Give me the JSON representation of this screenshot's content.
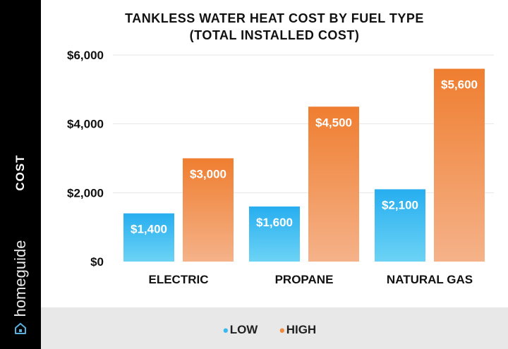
{
  "chart_data": {
    "type": "bar",
    "title": "TANKLESS WATER HEAT COST BY FUEL TYPE",
    "subtitle": "(TOTAL INSTALLED COST)",
    "ylabel": "COST",
    "xlabel": "",
    "categories": [
      "ELECTRIC",
      "PROPANE",
      "NATURAL GAS"
    ],
    "series": [
      {
        "name": "LOW",
        "values": [
          1400,
          1600,
          2100
        ],
        "labels": [
          "$1,400",
          "$1,600",
          "$2,100"
        ],
        "color": "#3cb8f0"
      },
      {
        "name": "HIGH",
        "values": [
          3000,
          4500,
          5600
        ],
        "labels": [
          "$3,000",
          "$4,500",
          "$5,600"
        ],
        "color": "#ef8a3f"
      }
    ],
    "ylim": [
      0,
      6000
    ],
    "yticks": [
      0,
      2000,
      4000,
      6000
    ],
    "ytick_labels": [
      "$0",
      "$2,000",
      "$4,000",
      "$6,000"
    ],
    "grid": true,
    "legend_position": "bottom-center"
  },
  "brand": "homeguide",
  "colors": {
    "sidebar": "#000000",
    "legend_background": "#e8e8e8",
    "gridline": "#e6e6e6"
  }
}
